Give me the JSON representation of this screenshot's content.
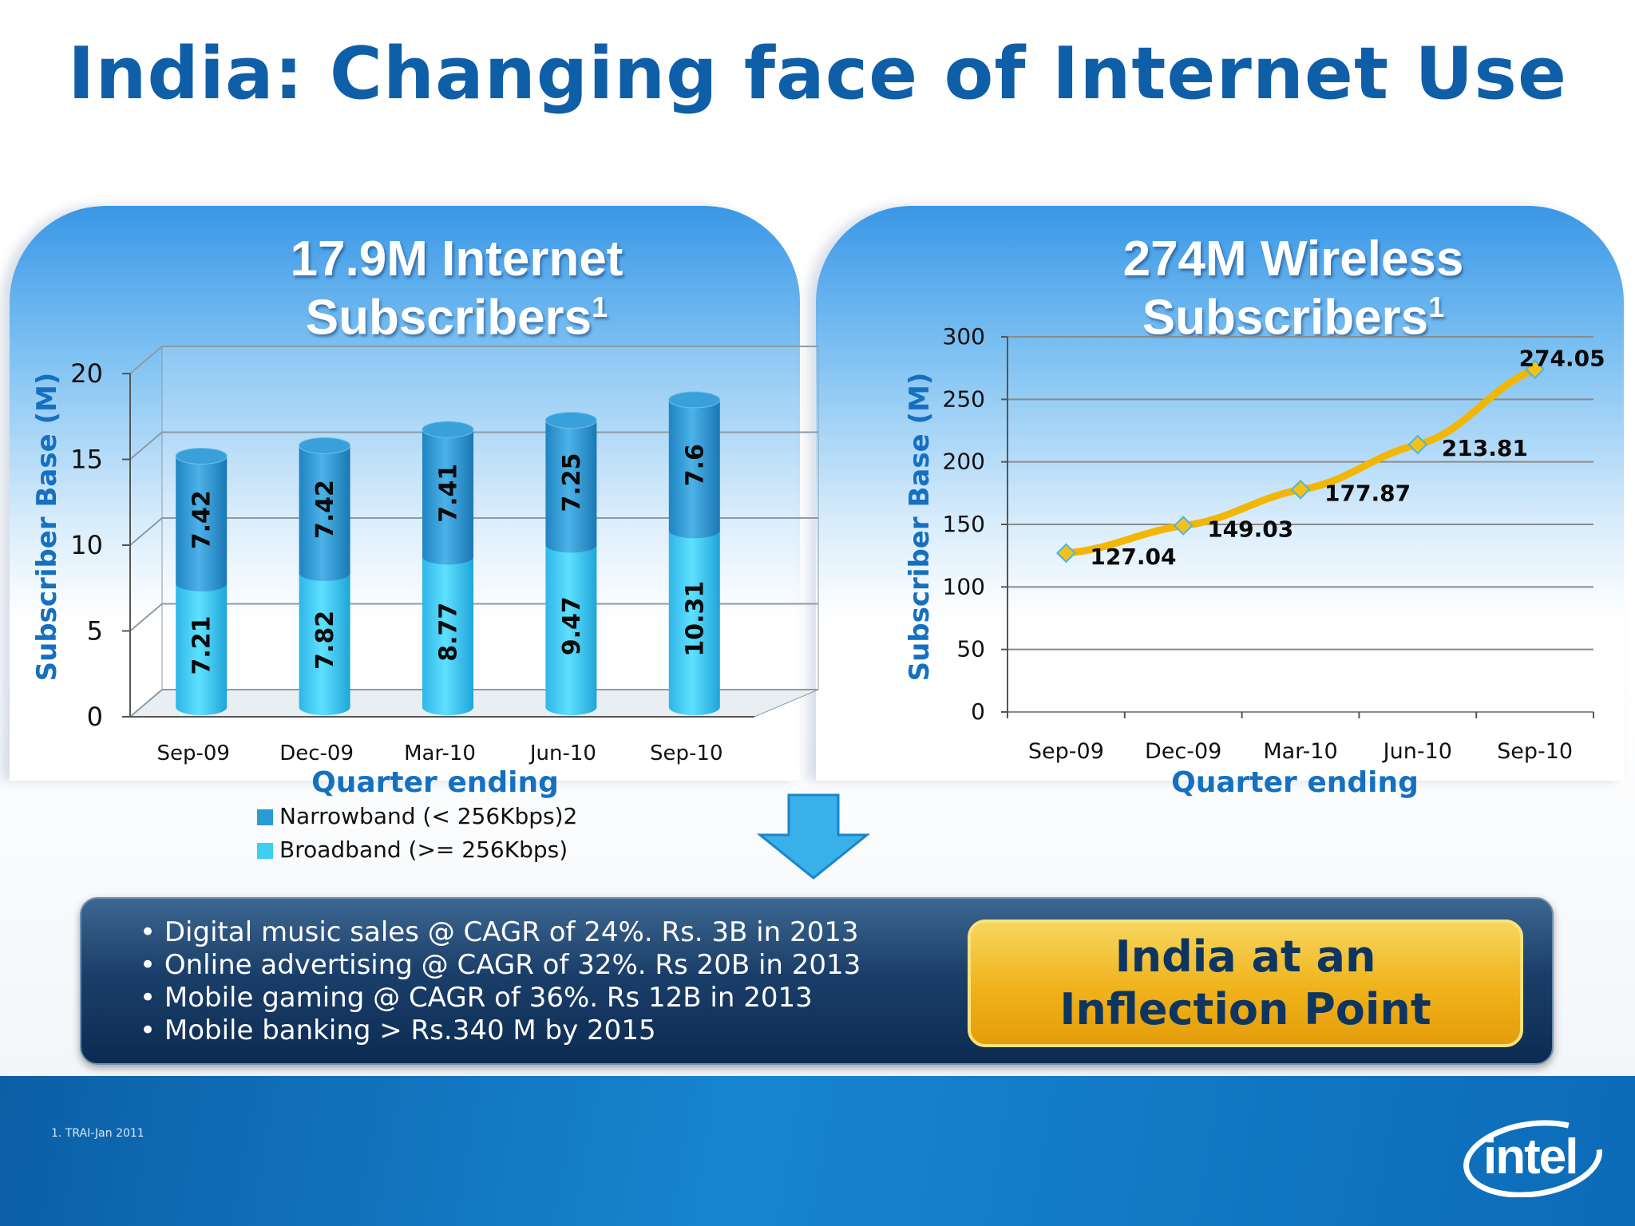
{
  "title": "India: Changing face of Internet Use",
  "panels": {
    "left": {
      "title_line1": "17.9M Internet",
      "title_line2": "Subscribers",
      "title_sup": "1"
    },
    "right": {
      "title_line1": "274M Wireless",
      "title_line2": "Subscribers",
      "title_sup": "1"
    }
  },
  "chart_data": [
    {
      "type": "bar",
      "stacked": true,
      "categories": [
        "Sep-09",
        "Dec-09",
        "Mar-10",
        "Jun-10",
        "Sep-10"
      ],
      "series": [
        {
          "name": "Broadband (>= 256Kbps)",
          "values": [
            7.21,
            7.82,
            8.77,
            9.47,
            10.31
          ],
          "labels": [
            "7.21",
            "7.82",
            "8.77",
            "9.47",
            "10.31"
          ],
          "color": "#3fcdf5"
        },
        {
          "name": "Narrowband (< 256Kbps)2",
          "values": [
            7.42,
            7.42,
            7.41,
            7.25,
            7.6
          ],
          "labels": [
            "7.42",
            "7.42",
            "7.41",
            "7.25",
            "7.6"
          ],
          "color": "#2b9bd8"
        }
      ],
      "legend": [
        "Narrowband (< 256Kbps)2",
        "Broadband (>= 256Kbps)"
      ],
      "xlabel": "Quarter ending",
      "ylabel": "Subscriber Base (M)",
      "ylim": [
        0,
        20
      ],
      "yticks": [
        "0",
        "5",
        "10",
        "15",
        "20"
      ]
    },
    {
      "type": "line",
      "x": [
        "Sep-09",
        "Dec-09",
        "Mar-10",
        "Jun-10",
        "Sep-10"
      ],
      "values": [
        127.04,
        149.03,
        177.87,
        213.81,
        274.05
      ],
      "labels": [
        "127.04",
        "149.03",
        "177.87",
        "213.81",
        "274.05"
      ],
      "xlabel": "Quarter ending",
      "ylabel": "Subscriber Base (M)",
      "ylim": [
        0,
        300
      ],
      "yticks": [
        "0",
        "50",
        "100",
        "150",
        "200",
        "250",
        "300"
      ],
      "line_color": "#f2b705"
    }
  ],
  "bullets": [
    "Digital music sales @ CAGR of 24%. Rs. 3B in 2013",
    "Online advertising @ CAGR of 32%. Rs 20B in 2013",
    "Mobile gaming @ CAGR of 36%. Rs 12B in 2013",
    "Mobile banking > Rs.340 M by 2015"
  ],
  "callout": "India at an Inflection Point",
  "footnote": "1. TRAI-Jan 2011",
  "logo_text": "intel"
}
